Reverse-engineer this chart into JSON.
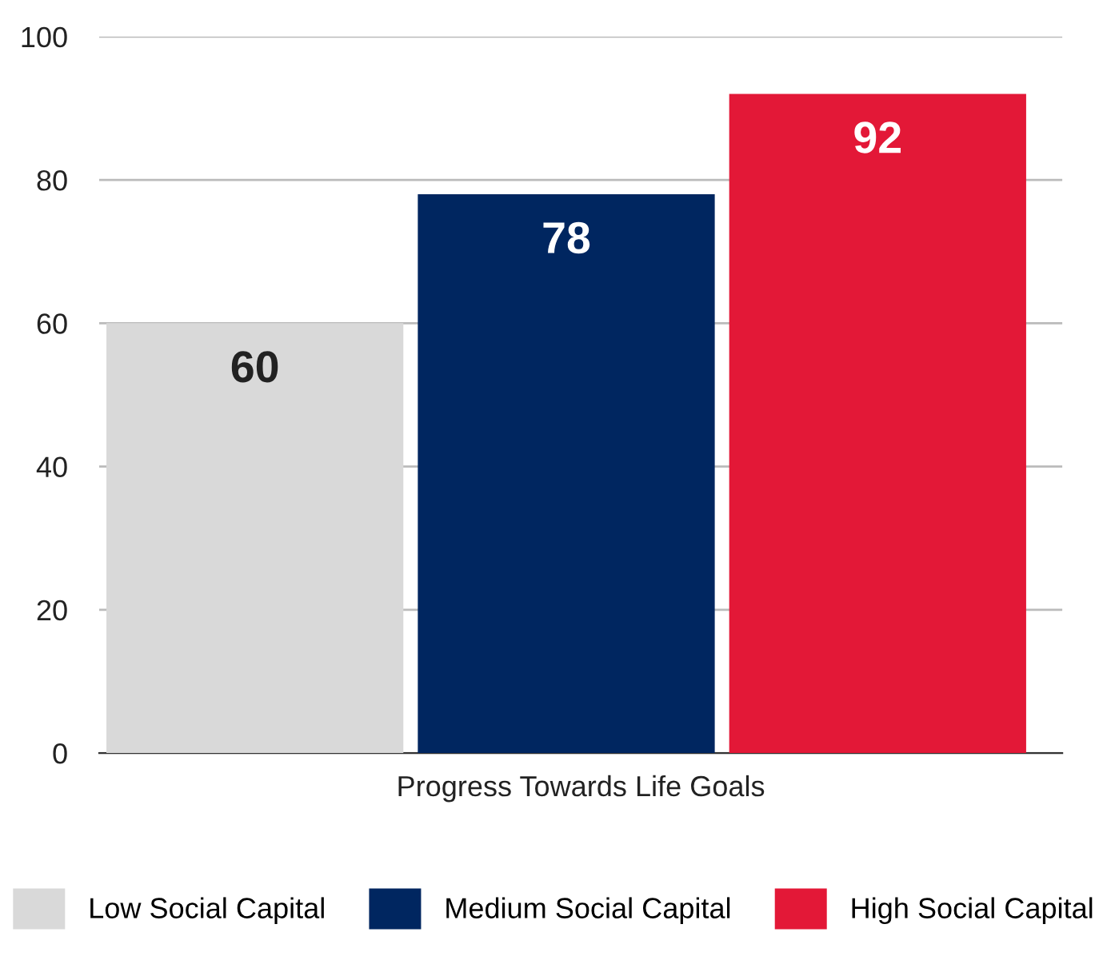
{
  "chart_data": {
    "type": "bar",
    "categories": [
      "Progress Towards Life Goals"
    ],
    "series": [
      {
        "name": "Low Social Capital",
        "color": "#d9d9d9",
        "values": [
          60
        ]
      },
      {
        "name": "Medium Social Capital",
        "color": "#002660",
        "values": [
          78
        ]
      },
      {
        "name": "High Social Capital",
        "color": "#e31837",
        "values": [
          92
        ]
      }
    ],
    "ylim": [
      0,
      100
    ],
    "yticks": [
      0,
      20,
      40,
      60,
      80,
      100
    ],
    "grid": "y",
    "data_labels": true,
    "legend": "bottom"
  }
}
